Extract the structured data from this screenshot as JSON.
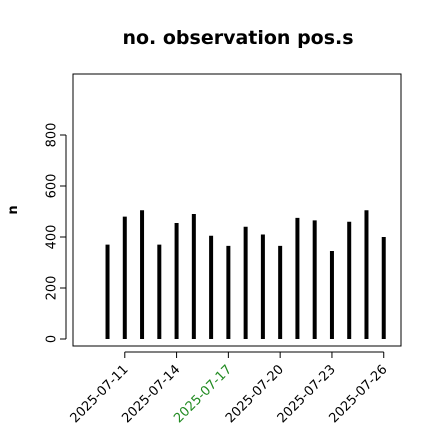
{
  "chart_data": {
    "type": "bar",
    "title": "no. observation pos.s",
    "xlabel": "",
    "ylabel": "n",
    "ylim": [
      0,
      1000
    ],
    "yticks": [
      0,
      200,
      400,
      600,
      800
    ],
    "xlim": [
      "2025-07-08",
      "2025-07-27"
    ],
    "x": [
      "2025-07-10",
      "2025-07-11",
      "2025-07-12",
      "2025-07-13",
      "2025-07-14",
      "2025-07-15",
      "2025-07-16",
      "2025-07-17",
      "2025-07-18",
      "2025-07-19",
      "2025-07-20",
      "2025-07-21",
      "2025-07-22",
      "2025-07-23",
      "2025-07-24",
      "2025-07-25",
      "2025-07-26"
    ],
    "values": [
      370,
      480,
      505,
      370,
      455,
      490,
      405,
      365,
      440,
      410,
      365,
      475,
      465,
      345,
      460,
      505,
      400
    ],
    "xticks": [
      {
        "label": "2025-07-11",
        "color": "#000000"
      },
      {
        "label": "2025-07-14",
        "color": "#000000"
      },
      {
        "label": "2025-07-17",
        "color": "#228B22"
      },
      {
        "label": "2025-07-20",
        "color": "#000000"
      },
      {
        "label": "2025-07-23",
        "color": "#000000"
      },
      {
        "label": "2025-07-26",
        "color": "#000000"
      }
    ],
    "bar_color": "#000000",
    "grid": false,
    "legend": "none"
  }
}
